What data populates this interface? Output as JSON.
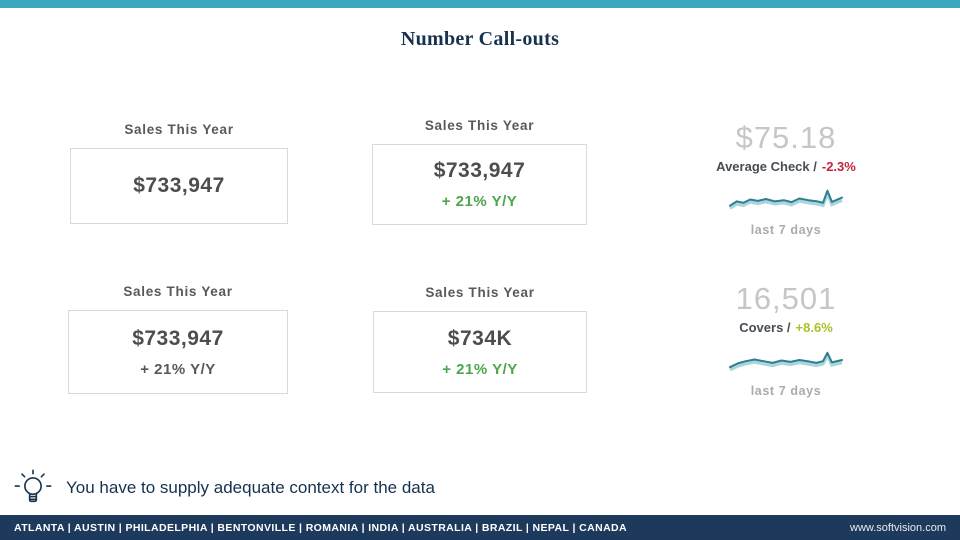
{
  "slide": {
    "title": "Number Call-outs",
    "takeaway": "You have to supply adequate context for the data",
    "footer": {
      "locations": "ATLANTA | AUSTIN | PHILADELPHIA | BENTONVILLE | ROMANIA | INDIA | AUSTRALIA | BRAZIL | NEPAL | CANADA",
      "website": "www.softvision.com"
    }
  },
  "cards": [
    {
      "header": "Sales This Year",
      "value": "$733,947",
      "delta": ""
    },
    {
      "header": "Sales This Year",
      "value": "$733,947",
      "delta": "+ 21% Y/Y",
      "delta_color": "#4CA64C"
    },
    {
      "header": "Sales This Year",
      "value": "$733,947",
      "delta": "+ 21% Y/Y",
      "delta_color": "#55595E"
    },
    {
      "header": "Sales This Year",
      "value": "$734K",
      "delta": "+ 21% Y/Y",
      "delta_color": "#4CA64C"
    }
  ],
  "callouts": [
    {
      "value": "$75.18",
      "label": "Average Check /",
      "delta": "-2.3%",
      "delta_color": "#C2243C",
      "caption": "last 7 days",
      "sparkline": [
        [
          0,
          0.78
        ],
        [
          0.06,
          0.6
        ],
        [
          0.12,
          0.66
        ],
        [
          0.18,
          0.52
        ],
        [
          0.25,
          0.58
        ],
        [
          0.32,
          0.5
        ],
        [
          0.4,
          0.6
        ],
        [
          0.48,
          0.55
        ],
        [
          0.55,
          0.63
        ],
        [
          0.62,
          0.48
        ],
        [
          0.7,
          0.55
        ],
        [
          0.78,
          0.6
        ],
        [
          0.83,
          0.66
        ],
        [
          0.87,
          0.16
        ],
        [
          0.91,
          0.62
        ],
        [
          1,
          0.44
        ]
      ]
    },
    {
      "value": "16,501",
      "label": "Covers /",
      "delta": "+8.6%",
      "delta_color": "#A6C327",
      "caption": "last 7 days",
      "sparkline": [
        [
          0,
          0.8
        ],
        [
          0.07,
          0.64
        ],
        [
          0.14,
          0.55
        ],
        [
          0.22,
          0.48
        ],
        [
          0.3,
          0.55
        ],
        [
          0.38,
          0.62
        ],
        [
          0.46,
          0.52
        ],
        [
          0.54,
          0.58
        ],
        [
          0.62,
          0.5
        ],
        [
          0.7,
          0.56
        ],
        [
          0.77,
          0.62
        ],
        [
          0.83,
          0.55
        ],
        [
          0.87,
          0.2
        ],
        [
          0.91,
          0.6
        ],
        [
          1,
          0.5
        ]
      ]
    }
  ],
  "icons": {
    "takeaway": "lightbulb-icon"
  },
  "colors": {
    "topbar_teal": "#3BA6C0",
    "footer_navy": "#1D3A5C",
    "title_navy": "#16324E",
    "card_header_gray": "#595959",
    "card_value_gray": "#4D4D4D",
    "positive_green": "#4CA64C",
    "neutral_gray": "#55595E",
    "negative_red": "#C2243C",
    "positive_yellow_green": "#A6C327",
    "big_number_gray": "#C6C6C6",
    "sparkline_teal": "#2E7E8F",
    "caption_gray": "#ABABAB",
    "card_border": "#D9D9D9"
  }
}
